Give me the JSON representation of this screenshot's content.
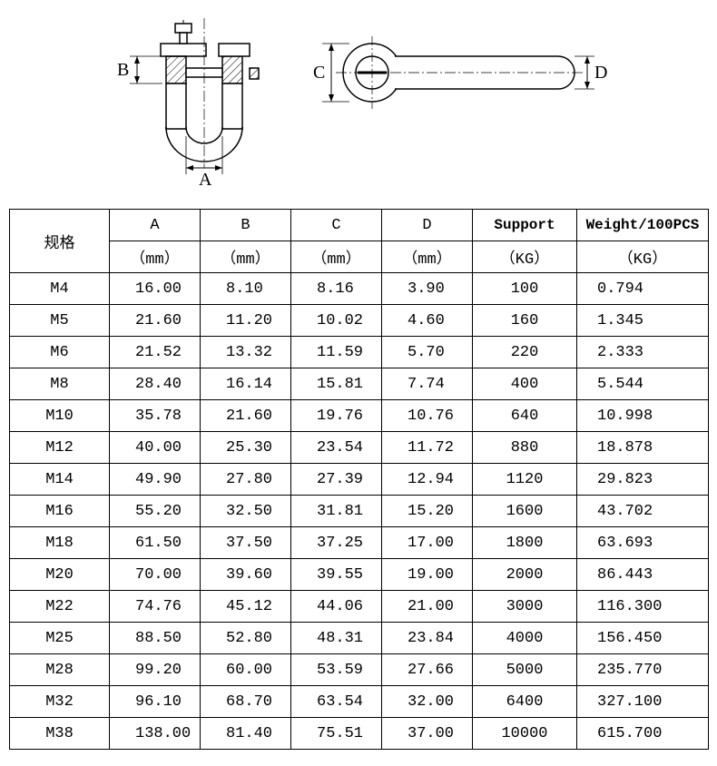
{
  "diagram": {
    "labels": {
      "A": "A",
      "B": "B",
      "C": "C",
      "D": "D"
    },
    "stroke": "#000000",
    "hatch": "#000000",
    "fill": "#ffffff"
  },
  "table": {
    "header1": {
      "spec": "规格",
      "A": "A",
      "B": "B",
      "C": "C",
      "D": "D",
      "support": "Support",
      "weight": "Weight/100PCS"
    },
    "header2": {
      "A_unit": "（mm）",
      "B_unit": "（mm）",
      "C_unit": "（mm）",
      "D_unit": "（mm）",
      "support_unit": "（KG）",
      "weight_unit": "（KG）"
    },
    "rows": [
      {
        "spec": "M4",
        "A": "16.00",
        "B": "8.10",
        "C": "8.16",
        "D": "3.90",
        "support": "100",
        "weight": "0.794"
      },
      {
        "spec": "M5",
        "A": "21.60",
        "B": "11.20",
        "C": "10.02",
        "D": "4.60",
        "support": "160",
        "weight": "1.345"
      },
      {
        "spec": "M6",
        "A": "21.52",
        "B": "13.32",
        "C": "11.59",
        "D": "5.70",
        "support": "220",
        "weight": "2.333"
      },
      {
        "spec": "M8",
        "A": "28.40",
        "B": "16.14",
        "C": "15.81",
        "D": "7.74",
        "support": "400",
        "weight": "5.544"
      },
      {
        "spec": "M10",
        "A": "35.78",
        "B": "21.60",
        "C": "19.76",
        "D": "10.76",
        "support": "640",
        "weight": "10.998"
      },
      {
        "spec": "M12",
        "A": "40.00",
        "B": "25.30",
        "C": "23.54",
        "D": "11.72",
        "support": "880",
        "weight": "18.878"
      },
      {
        "spec": "M14",
        "A": "49.90",
        "B": "27.80",
        "C": "27.39",
        "D": "12.94",
        "support": "1120",
        "weight": "29.823"
      },
      {
        "spec": "M16",
        "A": "55.20",
        "B": "32.50",
        "C": "31.81",
        "D": "15.20",
        "support": "1600",
        "weight": "43.702"
      },
      {
        "spec": "M18",
        "A": "61.50",
        "B": "37.50",
        "C": "37.25",
        "D": "17.00",
        "support": "1800",
        "weight": "63.693"
      },
      {
        "spec": "M20",
        "A": "70.00",
        "B": "39.60",
        "C": "39.55",
        "D": "19.00",
        "support": "2000",
        "weight": "86.443"
      },
      {
        "spec": "M22",
        "A": "74.76",
        "B": "45.12",
        "C": "44.06",
        "D": "21.00",
        "support": "3000",
        "weight": "116.300"
      },
      {
        "spec": "M25",
        "A": "88.50",
        "B": "52.80",
        "C": "48.31",
        "D": "23.84",
        "support": "4000",
        "weight": "156.450"
      },
      {
        "spec": "M28",
        "A": "99.20",
        "B": "60.00",
        "C": "53.59",
        "D": "27.66",
        "support": "5000",
        "weight": "235.770"
      },
      {
        "spec": "M32",
        "A": "96.10",
        "B": "68.70",
        "C": "63.54",
        "D": "32.00",
        "support": "6400",
        "weight": "327.100"
      },
      {
        "spec": "M38",
        "A": "138.00",
        "B": "81.40",
        "C": "75.51",
        "D": "37.00",
        "support": "10000",
        "weight": "615.700"
      }
    ],
    "border_color": "#000000",
    "background_color": "#ffffff",
    "fontsize": 17
  }
}
